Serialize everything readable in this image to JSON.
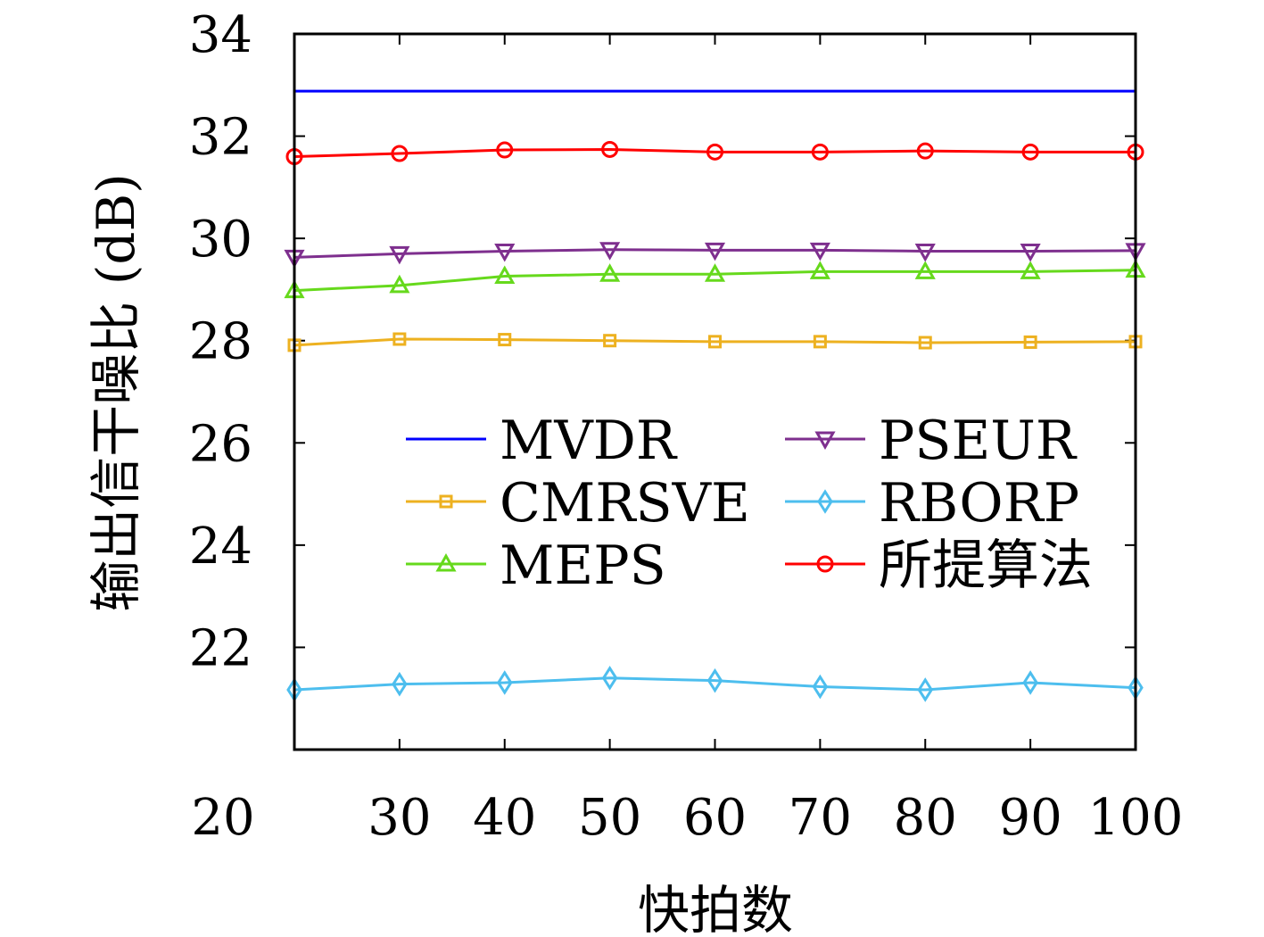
{
  "chart_data": {
    "type": "line",
    "title": "",
    "xlabel": "快拍数",
    "ylabel": "输出信干噪比 (dB)",
    "xlim": [
      20,
      100
    ],
    "ylim": [
      20,
      34
    ],
    "xticks": [
      "20",
      "30",
      "40",
      "50",
      "60",
      "70",
      "80",
      "90",
      "100"
    ],
    "yticks": [
      "22",
      "24",
      "26",
      "28",
      "30",
      "32",
      "34"
    ],
    "grid": false,
    "legend_placement": "center",
    "x": [
      20,
      30,
      40,
      50,
      60,
      70,
      80,
      90,
      100
    ],
    "series": [
      {
        "name": "MVDR",
        "color": "#0000ff",
        "marker": "none",
        "values": [
          32.88,
          32.88,
          32.88,
          32.88,
          32.88,
          32.88,
          32.88,
          32.88,
          32.88
        ]
      },
      {
        "name": "CMRSVE",
        "color": "#edb120",
        "marker": "square",
        "values": [
          27.91,
          28.03,
          28.02,
          28.0,
          27.98,
          27.98,
          27.96,
          27.97,
          27.98
        ]
      },
      {
        "name": "MEPS",
        "color": "#66d91c",
        "marker": "triangle-up",
        "values": [
          28.98,
          29.08,
          29.26,
          29.3,
          29.3,
          29.35,
          29.35,
          29.35,
          29.38
        ]
      },
      {
        "name": "PSEUR",
        "color": "#7e2f8e",
        "marker": "triangle-down",
        "values": [
          29.63,
          29.7,
          29.75,
          29.78,
          29.77,
          29.77,
          29.75,
          29.75,
          29.76
        ]
      },
      {
        "name": "RBORP",
        "color": "#4dbeee",
        "marker": "diamond",
        "values": [
          21.17,
          21.28,
          21.31,
          21.4,
          21.35,
          21.23,
          21.17,
          21.31,
          21.21
        ]
      },
      {
        "name": "所提算法",
        "color": "#ff0000",
        "marker": "circle",
        "values": [
          31.6,
          31.66,
          31.73,
          31.74,
          31.69,
          31.69,
          31.71,
          31.69,
          31.69
        ]
      }
    ]
  }
}
